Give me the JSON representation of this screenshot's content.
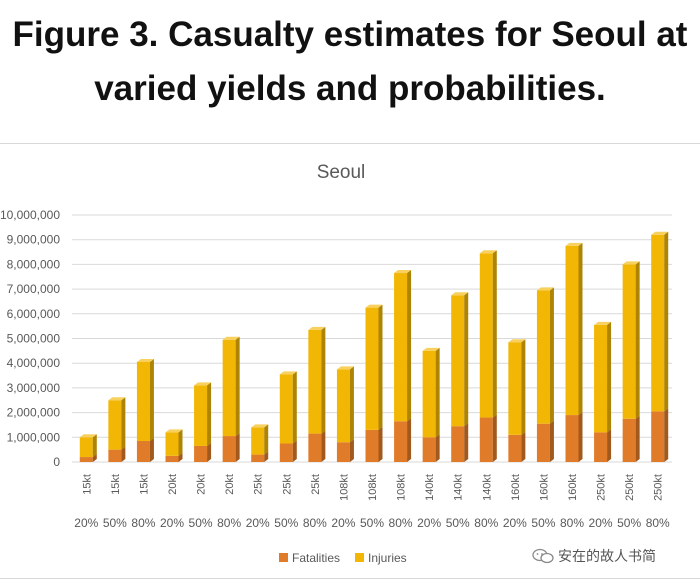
{
  "figure_title": "Figure 3. Casualty estimates for Seoul at varied yields and probabilities.",
  "watermark": "安在的故人书简",
  "colors": {
    "fatalities": "#e07b2a",
    "injuries": "#f2b705",
    "axis_text": "#595959",
    "grid": "#d9d9d9"
  },
  "chart_data": {
    "type": "bar",
    "stacked": true,
    "title": "Seoul",
    "xlabel": "",
    "ylabel": "",
    "ylim": [
      0,
      10000000
    ],
    "yticks": [
      0,
      1000000,
      2000000,
      3000000,
      4000000,
      5000000,
      6000000,
      7000000,
      8000000,
      9000000,
      10000000
    ],
    "ytick_labels": [
      "0",
      "1,000,000",
      "2,000,000",
      "3,000,000",
      "4,000,000",
      "5,000,000",
      "6,000,000",
      "7,000,000",
      "8,000,000",
      "9,000,000",
      "10,000,000"
    ],
    "grid": true,
    "legend": "bottom",
    "categories": [
      "15kt",
      "15kt",
      "15kt",
      "20kt",
      "20kt",
      "20kt",
      "25kt",
      "25kt",
      "25kt",
      "108kt",
      "108kt",
      "108kt",
      "140kt",
      "140kt",
      "140kt",
      "160kt",
      "160kt",
      "160kt",
      "250kt",
      "250kt",
      "250kt"
    ],
    "secondary_categories": [
      "20%",
      "50%",
      "80%",
      "20%",
      "50%",
      "80%",
      "20%",
      "50%",
      "80%",
      "20%",
      "50%",
      "80%",
      "20%",
      "50%",
      "80%",
      "20%",
      "50%",
      "80%",
      "20%",
      "50%",
      "80%"
    ],
    "series": [
      {
        "name": "Fatalities",
        "values": [
          200000,
          500000,
          850000,
          250000,
          650000,
          1050000,
          300000,
          750000,
          1150000,
          800000,
          1300000,
          1650000,
          1000000,
          1450000,
          1800000,
          1100000,
          1550000,
          1900000,
          1200000,
          1750000,
          2050000
        ]
      },
      {
        "name": "Injuries",
        "values": [
          800000,
          2000000,
          3200000,
          950000,
          2450000,
          3900000,
          1100000,
          2800000,
          4200000,
          2950000,
          4950000,
          6000000,
          3500000,
          5300000,
          6650000,
          3750000,
          5400000,
          6850000,
          4350000,
          6250000,
          7150000
        ]
      }
    ]
  }
}
